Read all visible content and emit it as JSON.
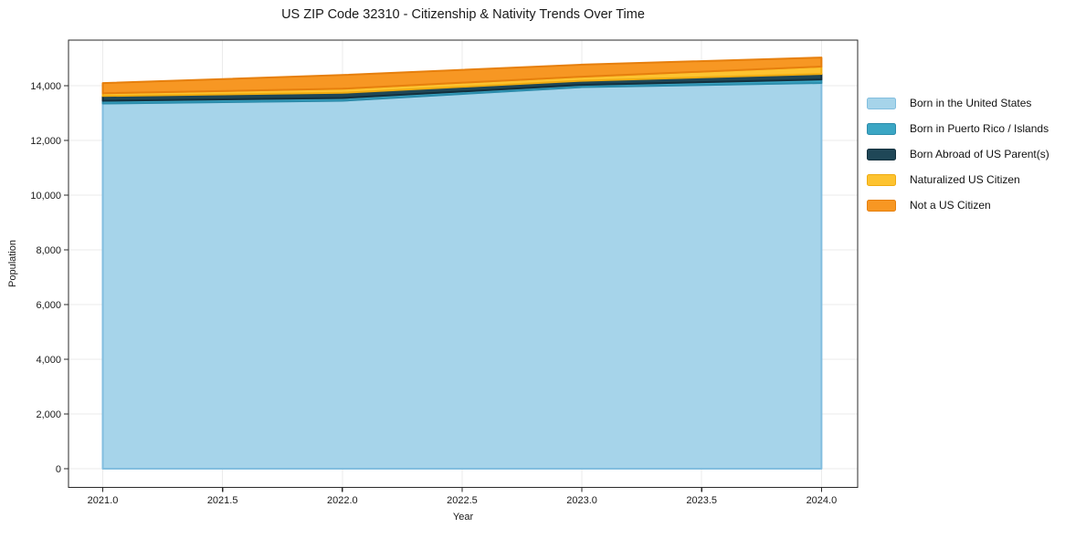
{
  "chart_data": {
    "type": "area",
    "stacked": true,
    "title": "US ZIP Code 32310 - Citizenship & Nativity Trends Over Time",
    "xlabel": "Year",
    "ylabel": "Population",
    "x": [
      2021,
      2022,
      2023,
      2024
    ],
    "series": [
      {
        "name": "Born in the United States",
        "color": "#a6d4ea",
        "edge": "#82bedf",
        "values": [
          13350,
          13450,
          13950,
          14100
        ]
      },
      {
        "name": "Born in Puerto Rico / Islands",
        "color": "#3ba6c4",
        "edge": "#2c8cab",
        "values": [
          100,
          100,
          80,
          130
        ]
      },
      {
        "name": "Born Abroad of US Parent(s)",
        "color": "#1f4757",
        "edge": "#132f3c",
        "values": [
          175,
          190,
          150,
          200
        ]
      },
      {
        "name": "Naturalized US Citizen",
        "color": "#fdc330",
        "edge": "#efab10",
        "values": [
          100,
          150,
          150,
          270
        ]
      },
      {
        "name": "Not a US Citizen",
        "color": "#f79723",
        "edge": "#e67f0d",
        "values": [
          370,
          500,
          440,
          330
        ]
      }
    ],
    "totals_by_year": [
      14095,
      14390,
      14770,
      15030
    ],
    "xticks": [
      2021.0,
      2021.5,
      2022.0,
      2022.5,
      2023.0,
      2023.5,
      2024.0
    ],
    "yticks": [
      0,
      2000,
      4000,
      6000,
      8000,
      10000,
      12000,
      14000
    ],
    "xlim": [
      2020.857,
      2024.151
    ],
    "ylim": [
      -683,
      15667
    ],
    "grid": true,
    "legend_position": "right",
    "grid_color": "#ebebeb",
    "axis_color": "#2a2a2a",
    "tick_text_color": "#1a1a1a",
    "plot_bg": "#ffffff"
  }
}
